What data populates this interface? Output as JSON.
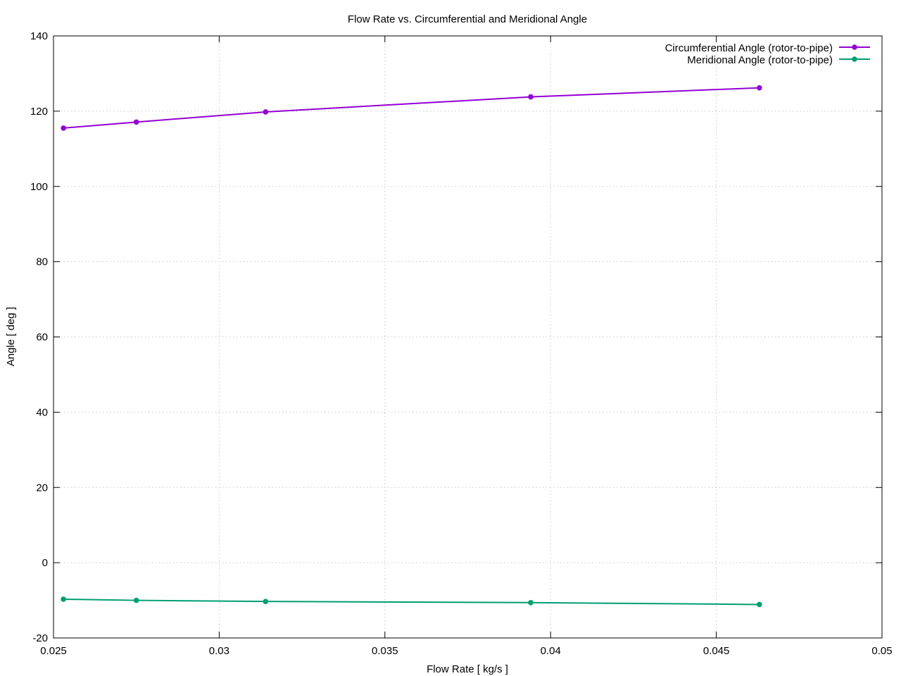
{
  "chart_data": {
    "type": "line",
    "title": "Flow Rate vs. Circumferential and Meridional Angle",
    "xlabel": "Flow Rate [ kg/s ]",
    "ylabel": "Angle [ deg ]",
    "xlim": [
      0.025,
      0.05
    ],
    "ylim": [
      -20,
      140
    ],
    "xticks": [
      0.025,
      0.03,
      0.035,
      0.04,
      0.045,
      0.05
    ],
    "xtick_labels": [
      "0.025",
      "0.03",
      "0.035",
      "0.04",
      "0.045",
      "0.05"
    ],
    "yticks": [
      -20,
      0,
      20,
      40,
      60,
      80,
      100,
      120,
      140
    ],
    "ytick_labels": [
      "-20",
      "0",
      "20",
      "40",
      "60",
      "80",
      "100",
      "120",
      "140"
    ],
    "grid": true,
    "legend_position": "top-right",
    "series": [
      {
        "name": "Circumferential Angle (rotor-to-pipe)",
        "color": "#9400d3",
        "x": [
          0.0253,
          0.0275,
          0.0314,
          0.0394,
          0.0463
        ],
        "y": [
          115.5,
          117.1,
          119.8,
          123.8,
          126.2
        ]
      },
      {
        "name": "Meridional Angle (rotor-to-pipe)",
        "color": "#009e73",
        "x": [
          0.0253,
          0.0275,
          0.0314,
          0.0394,
          0.0463
        ],
        "y": [
          -9.7,
          -10.0,
          -10.3,
          -10.6,
          -11.1
        ]
      }
    ]
  }
}
